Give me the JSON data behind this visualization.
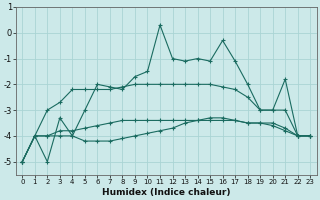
{
  "xlabel": "Humidex (Indice chaleur)",
  "x_values": [
    0,
    1,
    2,
    3,
    4,
    5,
    6,
    7,
    8,
    9,
    10,
    11,
    12,
    13,
    14,
    15,
    16,
    17,
    18,
    19,
    20,
    21,
    22,
    23
  ],
  "line1": [
    -5.0,
    -4.0,
    -5.0,
    -3.3,
    -4.0,
    -3.0,
    -2.0,
    -2.1,
    -2.2,
    -1.7,
    -1.5,
    0.3,
    -1.0,
    -1.1,
    -1.0,
    -1.1,
    -0.3,
    -1.1,
    -2.0,
    -3.0,
    -3.0,
    -1.8,
    -4.0,
    -4.0
  ],
  "line2": [
    -5.0,
    -4.0,
    -3.0,
    -2.7,
    -2.2,
    -2.2,
    -2.2,
    -2.2,
    -2.1,
    -2.0,
    -2.0,
    -2.0,
    -2.0,
    -2.0,
    -2.0,
    -2.0,
    -2.1,
    -2.2,
    -2.5,
    -3.0,
    -3.0,
    -3.0,
    -4.0,
    -4.0
  ],
  "line3": [
    -5.0,
    -4.0,
    -4.0,
    -3.8,
    -3.8,
    -3.7,
    -3.6,
    -3.5,
    -3.4,
    -3.4,
    -3.4,
    -3.4,
    -3.4,
    -3.4,
    -3.4,
    -3.4,
    -3.4,
    -3.4,
    -3.5,
    -3.5,
    -3.5,
    -3.7,
    -4.0,
    -4.0
  ],
  "line4": [
    -5.0,
    -4.0,
    -4.0,
    -4.0,
    -4.0,
    -4.2,
    -4.2,
    -4.2,
    -4.1,
    -4.0,
    -3.9,
    -3.8,
    -3.7,
    -3.5,
    -3.4,
    -3.3,
    -3.3,
    -3.4,
    -3.5,
    -3.5,
    -3.6,
    -3.8,
    -4.0,
    -4.0
  ],
  "color": "#1a6b60",
  "bg_color": "#cce9e9",
  "grid_color": "#aad4d4",
  "ylim": [
    -5.5,
    1.0
  ],
  "yticks": [
    -5,
    -4,
    -3,
    -2,
    -1,
    0,
    1
  ],
  "xlim": [
    -0.5,
    23.5
  ],
  "figsize": [
    3.2,
    2.0
  ],
  "dpi": 100
}
